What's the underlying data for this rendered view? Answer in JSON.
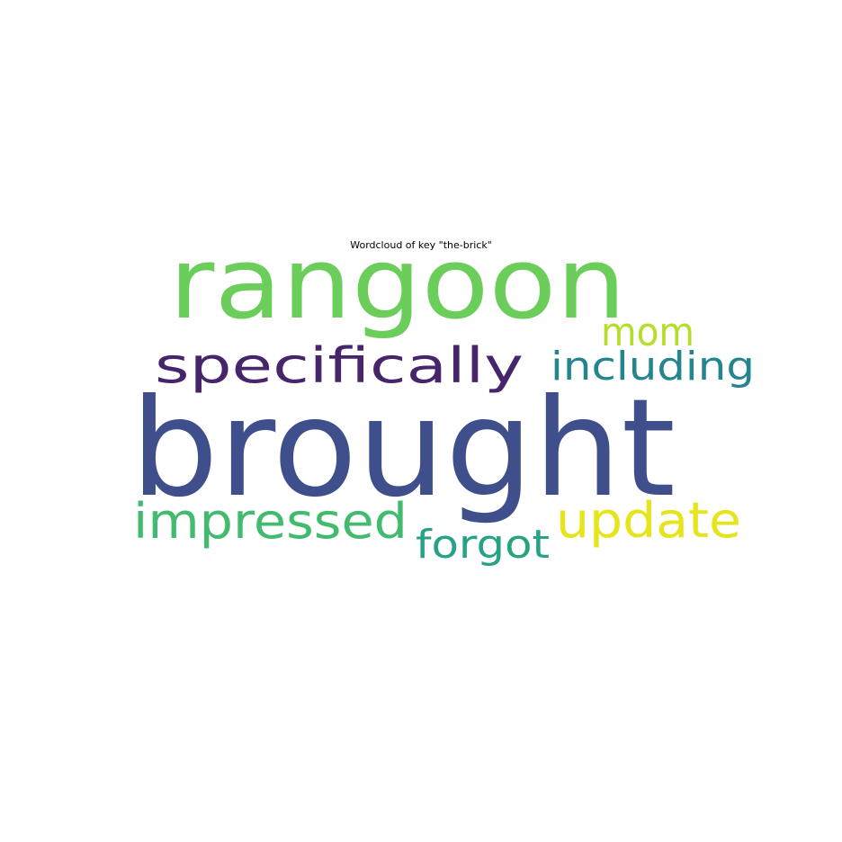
{
  "chart_data": {
    "type": "wordcloud",
    "title": "Wordcloud of key \"the-brick\"",
    "background": "#ffffff",
    "words": [
      {
        "text": "brought",
        "weight": 1.0,
        "color": "#3e4f8b"
      },
      {
        "text": "rangoon",
        "weight": 0.8,
        "color": "#6bcd5a"
      },
      {
        "text": "specifically",
        "weight": 0.46,
        "color": "#46256b"
      },
      {
        "text": "impressed",
        "weight": 0.46,
        "color": "#43bb6e"
      },
      {
        "text": "update",
        "weight": 0.46,
        "color": "#e6e51b"
      },
      {
        "text": "including",
        "weight": 0.37,
        "color": "#25858e"
      },
      {
        "text": "mom",
        "weight": 0.37,
        "color": "#b5de2b"
      },
      {
        "text": "forgot",
        "weight": 0.37,
        "color": "#26a386"
      }
    ]
  }
}
